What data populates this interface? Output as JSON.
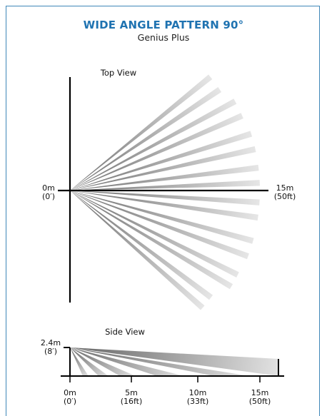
{
  "header": {
    "title": "WIDE ANGLE PATTERN 90°",
    "subtitle": "Genius Plus"
  },
  "top_view": {
    "label": "Top View",
    "origin_label": "0m",
    "origin_label_ft": "(0′)",
    "range_label": "15m",
    "range_label_ft": "(50ft)",
    "pattern_angle_deg": 90,
    "zone_pairs": 5
  },
  "side_view": {
    "label": "Side View",
    "height_label": "2.4m",
    "height_label_ft": "(8′)",
    "ticks": [
      {
        "m": "0m",
        "ft": "(0′)"
      },
      {
        "m": "5m",
        "ft": "(16ft)"
      },
      {
        "m": "10m",
        "ft": "(33ft)"
      },
      {
        "m": "15m",
        "ft": "(50ft)"
      }
    ]
  },
  "colors": {
    "title": "#1f73b1",
    "frame": "#3f87b8",
    "beam_dark": "#6e6e6e",
    "beam_light": "#e4e4e4"
  }
}
